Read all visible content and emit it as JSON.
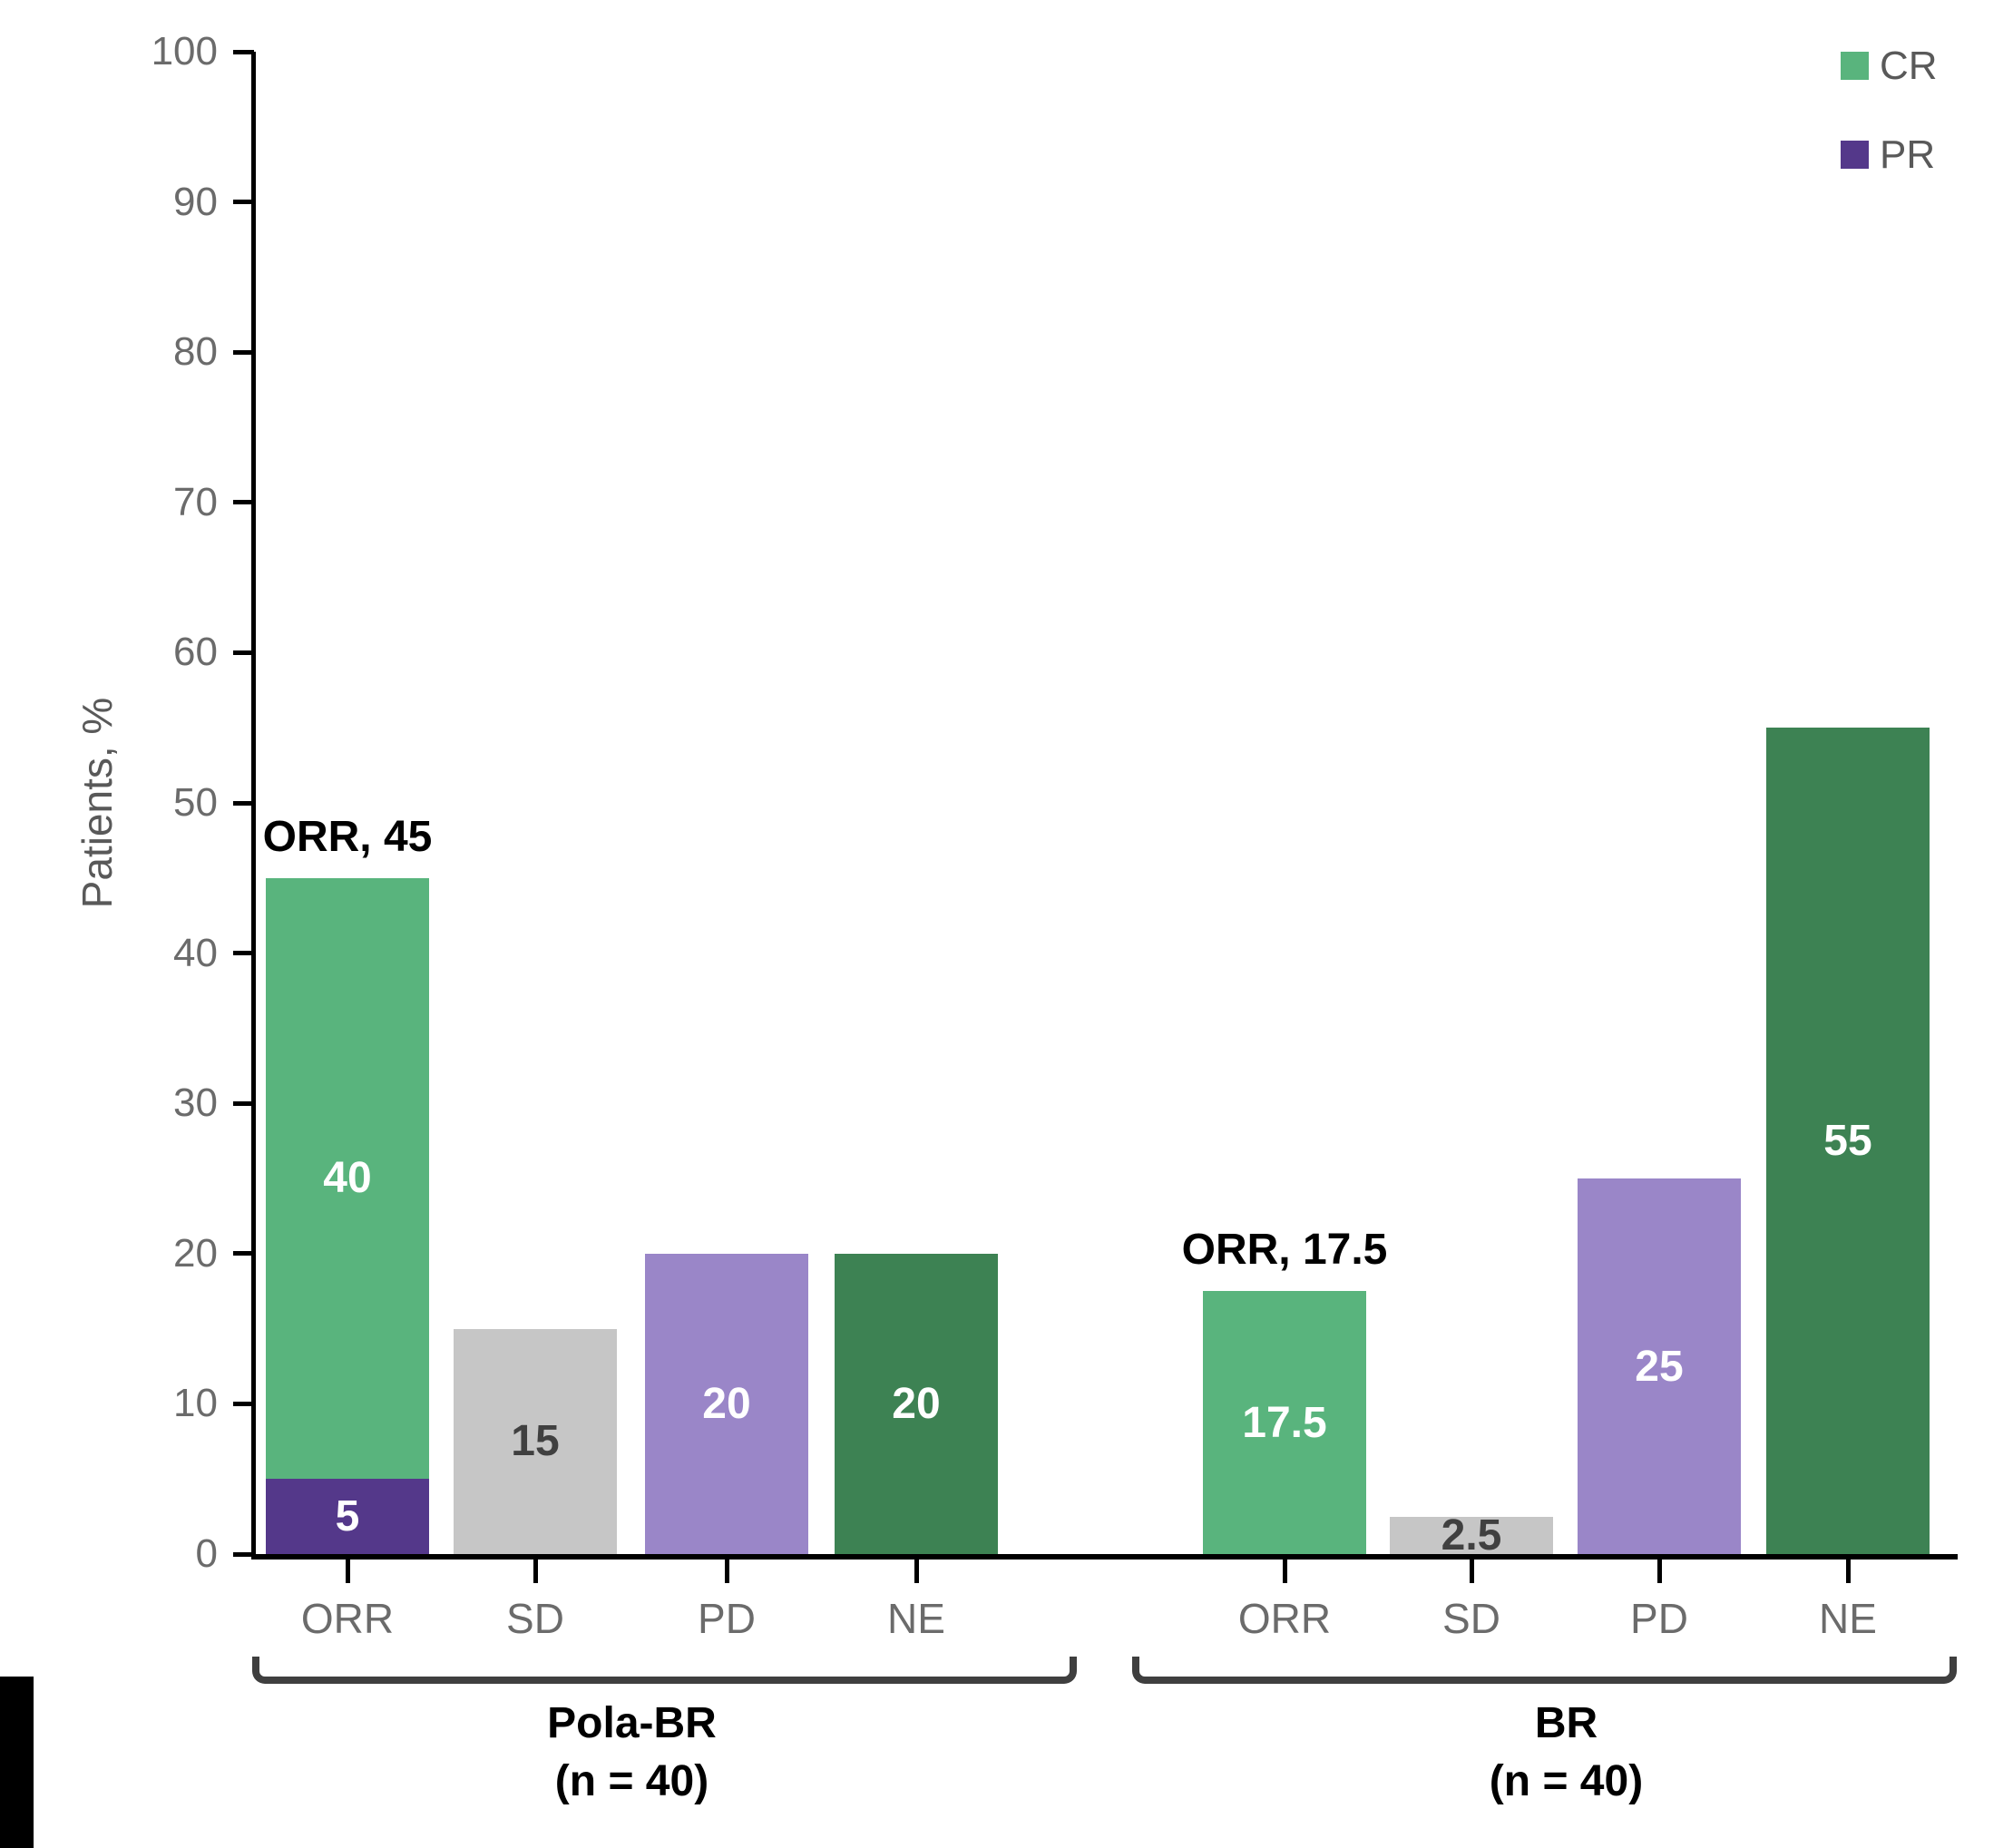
{
  "chart_data": {
    "type": "bar",
    "ylabel": "Patients, %",
    "ylim": [
      0,
      100
    ],
    "y_ticks": [
      0,
      10,
      20,
      30,
      40,
      50,
      60,
      70,
      80,
      90,
      100
    ],
    "grid": false,
    "legend_position": "top-right",
    "legend": [
      {
        "label": "CR",
        "color": "#59b47d"
      },
      {
        "label": "PR",
        "color": "#54388a"
      }
    ],
    "series_colors": {
      "CR": "#59b47d",
      "PR": "#54388a",
      "SD": "#c6c6c6",
      "PD": "#9a86c8",
      "NE": "#3d8253"
    },
    "groups": [
      {
        "label": "Pola-BR",
        "sublabel": "(n = 40)",
        "categories": [
          "ORR",
          "SD",
          "PD",
          "NE"
        ],
        "bars": [
          {
            "category": "ORR",
            "annotation": "ORR, 45",
            "total": 45,
            "segments": [
              {
                "series": "PR",
                "value": 5,
                "label": "5",
                "color": "#54388a",
                "label_color": "#ffffff"
              },
              {
                "series": "CR",
                "value": 40,
                "label": "40",
                "color": "#59b47d",
                "label_color": "#ffffff"
              }
            ]
          },
          {
            "category": "SD",
            "segments": [
              {
                "series": "SD",
                "value": 15,
                "label": "15",
                "color": "#c6c6c6",
                "label_color": "#404040"
              }
            ]
          },
          {
            "category": "PD",
            "segments": [
              {
                "series": "PD",
                "value": 20,
                "label": "20",
                "color": "#9a86c8",
                "label_color": "#ffffff"
              }
            ]
          },
          {
            "category": "NE",
            "segments": [
              {
                "series": "NE",
                "value": 20,
                "label": "20",
                "color": "#3d8253",
                "label_color": "#ffffff"
              }
            ]
          }
        ]
      },
      {
        "label": "BR",
        "sublabel": "(n = 40)",
        "categories": [
          "ORR",
          "SD",
          "PD",
          "NE"
        ],
        "bars": [
          {
            "category": "ORR",
            "annotation": "ORR, 17.5",
            "total": 17.5,
            "segments": [
              {
                "series": "CR",
                "value": 17.5,
                "label": "17.5",
                "color": "#59b47d",
                "label_color": "#ffffff"
              }
            ]
          },
          {
            "category": "SD",
            "segments": [
              {
                "series": "SD",
                "value": 2.5,
                "label": "2.5",
                "color": "#c6c6c6",
                "label_color": "#404040"
              }
            ]
          },
          {
            "category": "PD",
            "segments": [
              {
                "series": "PD",
                "value": 25,
                "label": "25",
                "color": "#9a86c8",
                "label_color": "#ffffff"
              }
            ]
          },
          {
            "category": "NE",
            "segments": [
              {
                "series": "NE",
                "value": 55,
                "label": "55",
                "color": "#3d8253",
                "label_color": "#ffffff"
              }
            ]
          }
        ]
      }
    ]
  }
}
